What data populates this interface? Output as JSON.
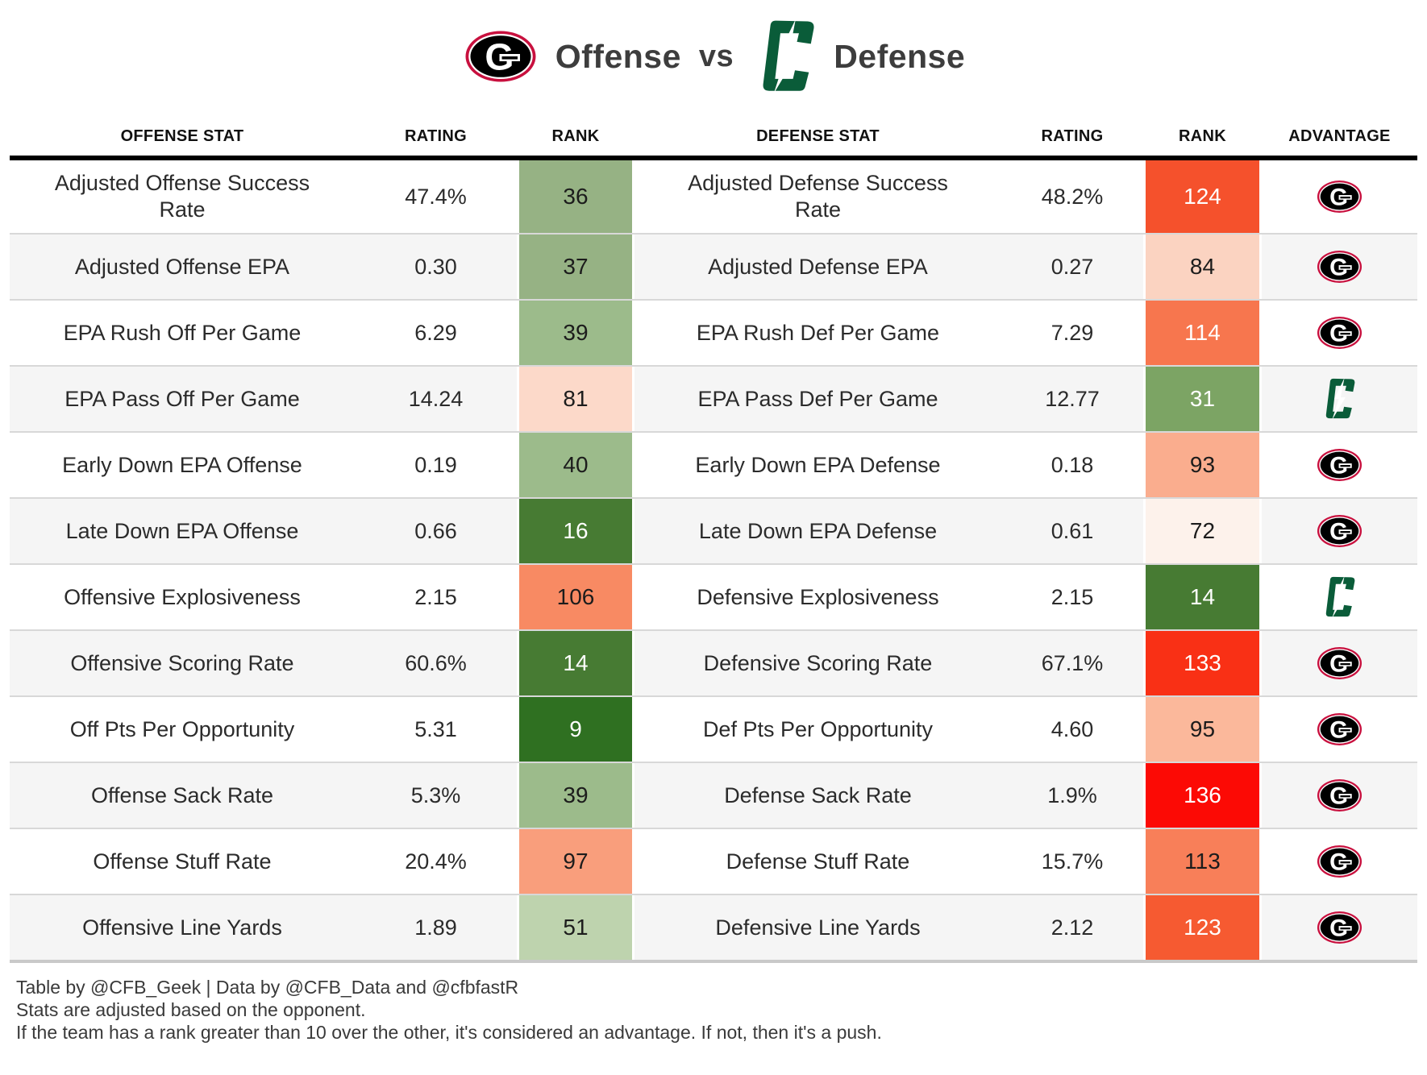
{
  "title": {
    "left_team": "Georgia",
    "left_label": "Offense",
    "vs": "vs",
    "right_team": "Charlotte",
    "right_label": "Defense"
  },
  "columns": [
    "OFFENSE STAT",
    "RATING",
    "RANK",
    "DEFENSE STAT",
    "RATING",
    "RANK",
    "ADVANTAGE"
  ],
  "colors": {
    "georgia_red": "#c8103e",
    "georgia_black": "#000000",
    "charlotte_green": "#0a5c39",
    "rank_dark_text": "#1c1c1c",
    "rank_light_text": "#ffffff",
    "row_alt_bg": "#f5f5f5",
    "separator": "#d8d8d8"
  },
  "rows": [
    {
      "off_stat": "Adjusted Offense Success Rate",
      "off_rating": "47.4%",
      "off_rank": "36",
      "off_rank_bg": "#96b284",
      "off_rank_fg": "#1c1c1c",
      "def_stat": "Adjusted Defense Success Rate",
      "def_rating": "48.2%",
      "def_rank": "124",
      "def_rank_bg": "#f5512c",
      "def_rank_fg": "#ffffff",
      "advantage": "georgia"
    },
    {
      "off_stat": "Adjusted Offense EPA",
      "off_rating": "0.30",
      "off_rank": "37",
      "off_rank_bg": "#96b284",
      "off_rank_fg": "#1c1c1c",
      "def_stat": "Adjusted Defense EPA",
      "def_rating": "0.27",
      "def_rank": "84",
      "def_rank_bg": "#fbd3c1",
      "def_rank_fg": "#1c1c1c",
      "advantage": "georgia"
    },
    {
      "off_stat": "EPA Rush Off Per Game",
      "off_rating": "6.29",
      "off_rank": "39",
      "off_rank_bg": "#9cbb8b",
      "off_rank_fg": "#1c1c1c",
      "def_stat": "EPA Rush Def Per Game",
      "def_rating": "7.29",
      "def_rank": "114",
      "def_rank_bg": "#f7764e",
      "def_rank_fg": "#ffffff",
      "advantage": "georgia"
    },
    {
      "off_stat": "EPA Pass Off Per Game",
      "off_rating": "14.24",
      "off_rank": "81",
      "off_rank_bg": "#fcd9c9",
      "off_rank_fg": "#1c1c1c",
      "def_stat": "EPA Pass Def Per Game",
      "def_rating": "12.77",
      "def_rank": "31",
      "def_rank_bg": "#7ca464",
      "def_rank_fg": "#ffffff",
      "advantage": "charlotte"
    },
    {
      "off_stat": "Early Down EPA Offense",
      "off_rating": "0.19",
      "off_rank": "40",
      "off_rank_bg": "#9cbb8b",
      "off_rank_fg": "#1c1c1c",
      "def_stat": "Early Down EPA Defense",
      "def_rating": "0.18",
      "def_rank": "93",
      "def_rank_bg": "#faad8e",
      "def_rank_fg": "#1c1c1c",
      "advantage": "georgia"
    },
    {
      "off_stat": "Late Down EPA Offense",
      "off_rating": "0.66",
      "off_rank": "16",
      "off_rank_bg": "#477b33",
      "off_rank_fg": "#ffffff",
      "def_stat": "Late Down EPA Defense",
      "def_rating": "0.61",
      "def_rank": "72",
      "def_rank_bg": "#fdf2eb",
      "def_rank_fg": "#1c1c1c",
      "advantage": "georgia"
    },
    {
      "off_stat": "Offensive Explosiveness",
      "off_rating": "2.15",
      "off_rank": "106",
      "off_rank_bg": "#f88a63",
      "off_rank_fg": "#1c1c1c",
      "def_stat": "Defensive Explosiveness",
      "def_rating": "2.15",
      "def_rank": "14",
      "def_rank_bg": "#477b33",
      "def_rank_fg": "#ffffff",
      "advantage": "charlotte"
    },
    {
      "off_stat": "Offensive Scoring Rate",
      "off_rating": "60.6%",
      "off_rank": "14",
      "off_rank_bg": "#477b33",
      "off_rank_fg": "#ffffff",
      "def_stat": "Defensive Scoring Rate",
      "def_rating": "67.1%",
      "def_rank": "133",
      "def_rank_bg": "#f93015",
      "def_rank_fg": "#ffffff",
      "advantage": "georgia"
    },
    {
      "off_stat": "Off Pts Per Opportunity",
      "off_rating": "5.31",
      "off_rank": "9",
      "off_rank_bg": "#2f7021",
      "off_rank_fg": "#ffffff",
      "def_stat": "Def Pts Per Opportunity",
      "def_rating": "4.60",
      "def_rank": "95",
      "def_rank_bg": "#fbb89b",
      "def_rank_fg": "#1c1c1c",
      "advantage": "georgia"
    },
    {
      "off_stat": "Offense Sack Rate",
      "off_rating": "5.3%",
      "off_rank": "39",
      "off_rank_bg": "#9cbb8b",
      "off_rank_fg": "#1c1c1c",
      "def_stat": "Defense Sack Rate",
      "def_rating": "1.9%",
      "def_rank": "136",
      "def_rank_bg": "#fc0a05",
      "def_rank_fg": "#ffffff",
      "advantage": "georgia"
    },
    {
      "off_stat": "Offense Stuff Rate",
      "off_rating": "20.4%",
      "off_rank": "97",
      "off_rank_bg": "#f99e7c",
      "off_rank_fg": "#1c1c1c",
      "def_stat": "Defense Stuff Rate",
      "def_rating": "15.7%",
      "def_rank": "113",
      "def_rank_bg": "#f87f59",
      "def_rank_fg": "#1c1c1c",
      "advantage": "georgia"
    },
    {
      "off_stat": "Offensive Line Yards",
      "off_rating": "1.89",
      "off_rank": "51",
      "off_rank_bg": "#bed3ae",
      "off_rank_fg": "#1c1c1c",
      "def_stat": "Defensive Line Yards",
      "def_rating": "2.12",
      "def_rank": "123",
      "def_rank_bg": "#f65a31",
      "def_rank_fg": "#ffffff",
      "advantage": "georgia"
    }
  ],
  "footer": {
    "line1": "Table by @CFB_Geek | Data by @CFB_Data and @cfbfastR",
    "line2": "Stats are adjusted based on the opponent.",
    "line3": "If the team has a rank greater than 10 over the other, it's considered an advantage. If not, then it's a push."
  },
  "chart_data": {
    "type": "table",
    "title": "Georgia Offense vs Charlotte Defense",
    "columns": [
      "OFFENSE STAT",
      "RATING",
      "RANK",
      "DEFENSE STAT",
      "RATING",
      "RANK",
      "ADVANTAGE"
    ],
    "rows": [
      [
        "Adjusted Offense Success Rate",
        "47.4%",
        36,
        "Adjusted Defense Success Rate",
        "48.2%",
        124,
        "Georgia"
      ],
      [
        "Adjusted Offense EPA",
        "0.30",
        37,
        "Adjusted Defense EPA",
        "0.27",
        84,
        "Georgia"
      ],
      [
        "EPA Rush Off Per Game",
        "6.29",
        39,
        "EPA Rush Def Per Game",
        "7.29",
        114,
        "Georgia"
      ],
      [
        "EPA Pass Off Per Game",
        "14.24",
        81,
        "EPA Pass Def Per Game",
        "12.77",
        31,
        "Charlotte"
      ],
      [
        "Early Down EPA Offense",
        "0.19",
        40,
        "Early Down EPA Defense",
        "0.18",
        93,
        "Georgia"
      ],
      [
        "Late Down EPA Offense",
        "0.66",
        16,
        "Late Down EPA Defense",
        "0.61",
        72,
        "Georgia"
      ],
      [
        "Offensive Explosiveness",
        "2.15",
        106,
        "Defensive Explosiveness",
        "2.15",
        14,
        "Charlotte"
      ],
      [
        "Offensive Scoring Rate",
        "60.6%",
        14,
        "Defensive Scoring Rate",
        "67.1%",
        133,
        "Georgia"
      ],
      [
        "Off Pts Per Opportunity",
        "5.31",
        9,
        "Def Pts Per Opportunity",
        "4.60",
        95,
        "Georgia"
      ],
      [
        "Offense Sack Rate",
        "5.3%",
        39,
        "Defense Sack Rate",
        "1.9%",
        136,
        "Georgia"
      ],
      [
        "Offense Stuff Rate",
        "20.4%",
        97,
        "Defense Stuff Rate",
        "15.7%",
        113,
        "Georgia"
      ],
      [
        "Offensive Line Yards",
        "1.89",
        51,
        "Defensive Line Yards",
        "2.12",
        123,
        "Georgia"
      ]
    ]
  }
}
